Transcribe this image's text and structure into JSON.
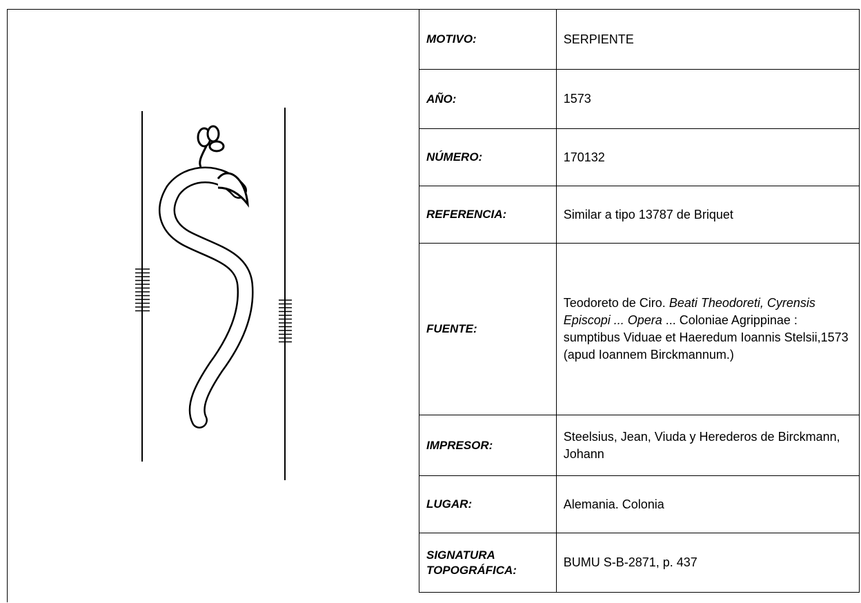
{
  "table": {
    "rows": [
      {
        "label": "MOTIVO:",
        "value": [
          "SERPIENTE"
        ]
      },
      {
        "label": "AÑO:",
        "value": [
          "1573"
        ]
      },
      {
        "label": "NÚMERO:",
        "value": [
          "170132"
        ]
      },
      {
        "label": "REFERENCIA:",
        "value": [
          "Similar a tipo 13787 de Briquet"
        ]
      },
      {
        "label": "FUENTE:",
        "value": [
          "Teodoreto de Ciro. ",
          "Beati Theodoreti, Cyrensis Episcopi ... Opera",
          "  ... Coloniae Agrippinae : sumptibus Viduae et Haeredum Ioannis Stelsii,1573 (apud Ioannem Birckmannum.)"
        ]
      },
      {
        "label": "IMPRESOR:",
        "value": [
          "Steelsius, Jean, Viuda y Herederos de Birckmann, Johann"
        ]
      },
      {
        "label": "LUGAR:",
        "value": [
          "Alemania. Colonia"
        ]
      },
      {
        "label": "SIGNATURA TOPOGRÁFICA:",
        "value": [
          "BUMU S-B-2871, p. 437"
        ]
      }
    ]
  }
}
